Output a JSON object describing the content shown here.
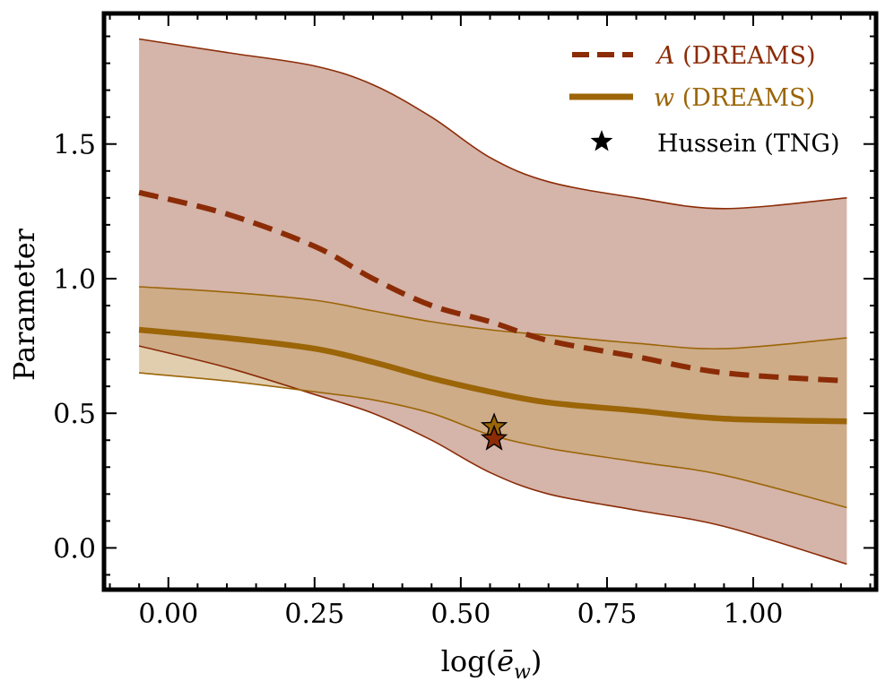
{
  "chart_data": {
    "type": "line",
    "xlabel": "log(ē_w)",
    "xlabel_base": "log(",
    "xlabel_var": "ē",
    "xlabel_sub": "w",
    "xlabel_close": ")",
    "ylabel": "Parameter",
    "xlim": [
      -0.11,
      1.21
    ],
    "ylim": [
      -0.155,
      1.985
    ],
    "xticks": [
      0.0,
      0.25,
      0.5,
      0.75,
      1.0
    ],
    "xtick_labels": [
      "0.00",
      "0.25",
      "0.50",
      "0.75",
      "1.00"
    ],
    "yticks": [
      0.0,
      0.5,
      1.0,
      1.5
    ],
    "ytick_labels": [
      "0.0",
      "0.5",
      "1.0",
      "1.5"
    ],
    "x": [
      -0.05,
      0.1,
      0.25,
      0.35,
      0.45,
      0.55,
      0.65,
      0.8,
      0.95,
      1.16
    ],
    "series": [
      {
        "name": "A (DREAMS)",
        "symbol": "A",
        "suffix": " (DREAMS)",
        "style": "dashed",
        "color": "#8b2c07",
        "band_color": "#b77e6b",
        "values": [
          1.32,
          1.24,
          1.12,
          1.0,
          0.9,
          0.84,
          0.77,
          0.71,
          0.65,
          0.62
        ],
        "upper": [
          1.89,
          1.84,
          1.79,
          1.72,
          1.6,
          1.45,
          1.36,
          1.3,
          1.26,
          1.3
        ],
        "lower": [
          0.75,
          0.67,
          0.57,
          0.5,
          0.4,
          0.28,
          0.2,
          0.14,
          0.08,
          -0.06
        ]
      },
      {
        "name": "w (DREAMS)",
        "symbol": "w",
        "suffix": " (DREAMS)",
        "style": "solid",
        "color": "#9b6508",
        "band_color": "#c9a66e",
        "values": [
          0.81,
          0.78,
          0.74,
          0.69,
          0.63,
          0.58,
          0.54,
          0.51,
          0.48,
          0.47
        ],
        "upper": [
          0.97,
          0.95,
          0.92,
          0.88,
          0.84,
          0.81,
          0.79,
          0.76,
          0.74,
          0.78
        ],
        "lower": [
          0.65,
          0.62,
          0.58,
          0.55,
          0.5,
          0.42,
          0.37,
          0.32,
          0.27,
          0.15
        ]
      }
    ],
    "markers": [
      {
        "x": 0.557,
        "y": 0.45,
        "color": "#9b6508",
        "series": "w"
      },
      {
        "x": 0.557,
        "y": 0.405,
        "color": "#8b2c07",
        "series": "A"
      }
    ],
    "legend": {
      "position": "top-right",
      "entries": [
        {
          "symbol": "A",
          "suffix": " (DREAMS)",
          "color": "#8b2c07"
        },
        {
          "symbol": "w",
          "suffix": " (DREAMS)",
          "color": "#9b6508"
        },
        {
          "label": "Hussein (TNG)",
          "color": "#000000"
        }
      ]
    }
  }
}
